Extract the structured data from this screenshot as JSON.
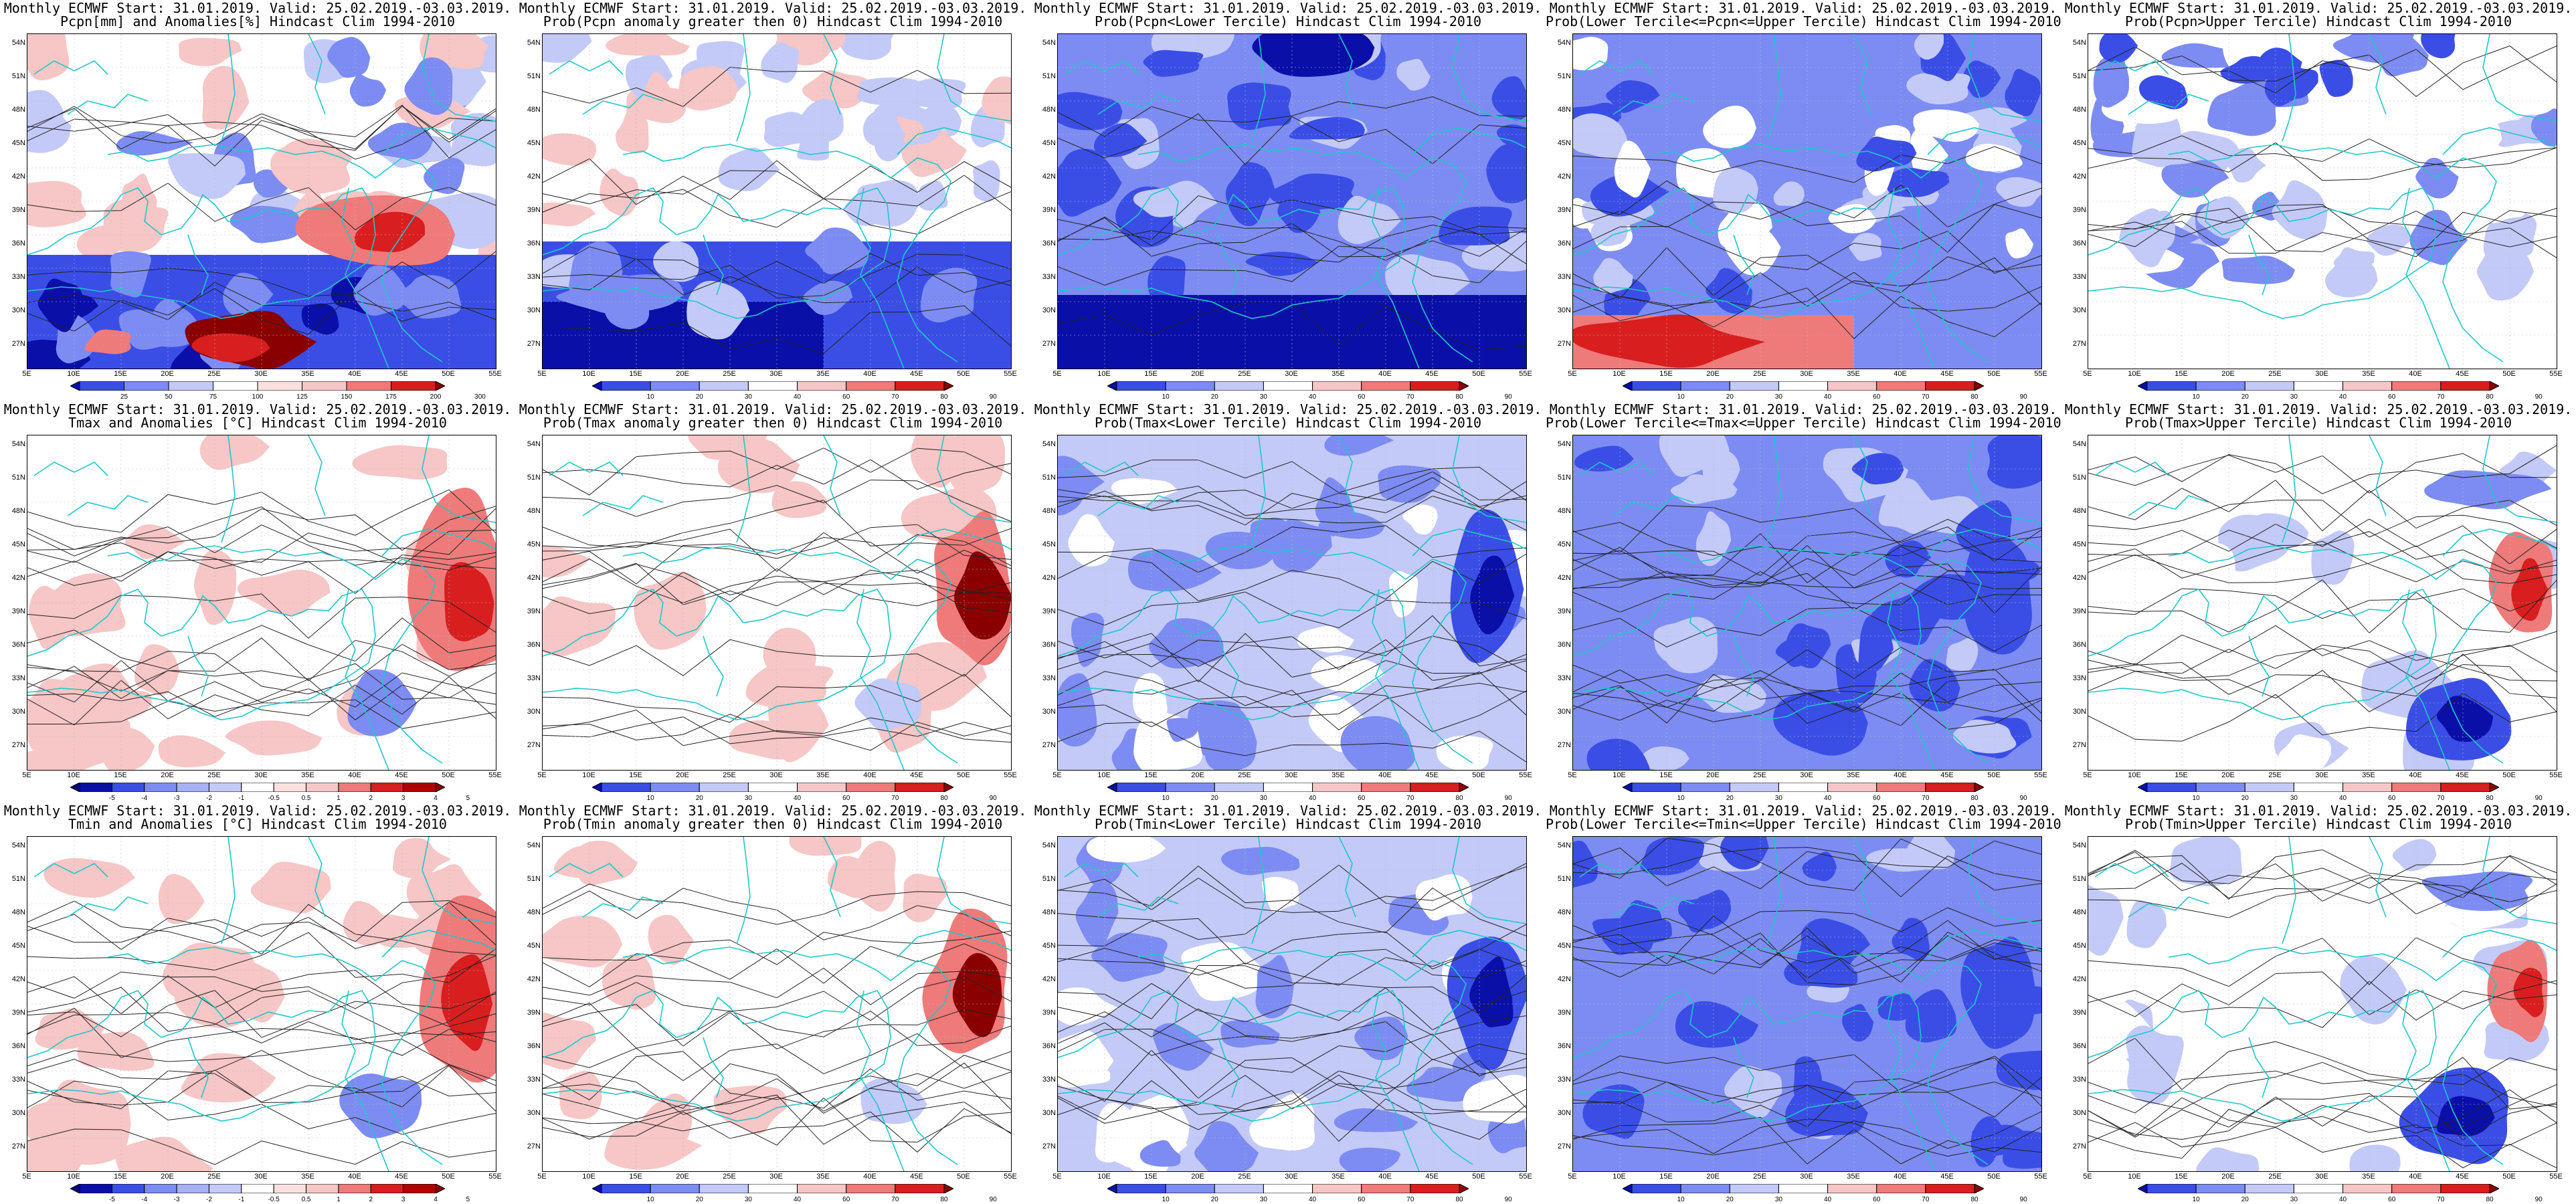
{
  "lat_labels": [
    "54N",
    "51N",
    "48N",
    "45N",
    "42N",
    "39N",
    "36N",
    "33N",
    "30N",
    "27N"
  ],
  "lon_labels": [
    "5E",
    "10E",
    "15E",
    "20E",
    "25E",
    "30E",
    "35E",
    "40E",
    "45E",
    "50E",
    "55E"
  ],
  "colors": {
    "deep_blue": "#0a0fa8",
    "blue": "#3a4ee6",
    "mid_blue": "#7d8cf2",
    "light_blue": "#c3caf8",
    "white": "#ffffff",
    "light_red": "#f7c6c6",
    "mid_red": "#ef7a7a",
    "red": "#d81e1e",
    "deep_red": "#8a0000",
    "coast": "#1ec8c8",
    "contour": "#222222"
  },
  "panels": [
    {
      "line1": "Monthly ECMWF Start: 31.01.2019. Valid: 25.02.2019.-03.03.2019.",
      "line2": "Pcpn[mm] and Anomalies[%] Hindcast Clim 1994-2010",
      "colorbar": "anom_pcpn",
      "style": "pcpn_anom"
    },
    {
      "line1": "Monthly ECMWF Start: 31.01.2019. Valid: 25.02.2019.-03.03.2019.",
      "line2": "Prob(Pcpn anomaly greater then 0) Hindcast Clim 1994-2010",
      "colorbar": "prob",
      "style": "pcpn_gt0"
    },
    {
      "line1": "Monthly ECMWF Start: 31.01.2019. Valid: 25.02.2019.-03.03.2019.",
      "line2": "Prob(Pcpn<Lower Tercile) Hindcast Clim 1994-2010",
      "colorbar": "prob",
      "style": "pcpn_lower"
    },
    {
      "line1": "Monthly ECMWF Start: 31.01.2019. Valid: 25.02.2019.-03.03.2019.",
      "line2": "Prob(Lower Tercile<=Pcpn<=Upper Tercile) Hindcast Clim 1994-2010",
      "colorbar": "prob",
      "style": "pcpn_mid"
    },
    {
      "line1": "Monthly ECMWF Start: 31.01.2019. Valid: 25.02.2019.-03.03.2019.",
      "line2": "Prob(Pcpn>Upper Tercile) Hindcast Clim 1994-2010",
      "colorbar": "prob",
      "style": "pcpn_upper"
    },
    {
      "line1": "Monthly ECMWF Start: 31.01.2019. Valid: 25.02.2019.-03.03.2019.",
      "line2": "Tmax and Anomalies [°C] Hindcast Clim 1994-2010",
      "colorbar": "anom_temp",
      "style": "t_anom"
    },
    {
      "line1": "Monthly ECMWF Start: 31.01.2019. Valid: 25.02.2019.-03.03.2019.",
      "line2": "Prob(Tmax anomaly greater then 0) Hindcast Clim 1994-2010",
      "colorbar": "prob",
      "style": "t_gt0"
    },
    {
      "line1": "Monthly ECMWF Start: 31.01.2019. Valid: 25.02.2019.-03.03.2019.",
      "line2": "Prob(Tmax<Lower Tercile) Hindcast Clim 1994-2010",
      "colorbar": "prob",
      "style": "t_lower"
    },
    {
      "line1": "Monthly ECMWF Start: 31.01.2019. Valid: 25.02.2019.-03.03.2019.",
      "line2": "Prob(Lower Tercile<=Tmax<=Upper Tercile) Hindcast Clim 1994-2010",
      "colorbar": "prob",
      "style": "t_mid"
    },
    {
      "line1": "Monthly ECMWF Start: 31.01.2019. Valid: 25.02.2019.-03.03.2019.",
      "line2": "Prob(Tmax>Upper Tercile) Hindcast Clim 1994-2010",
      "colorbar": "prob",
      "style": "t_upper"
    },
    {
      "line1": "Monthly ECMWF Start: 31.01.2019. Valid: 25.02.2019.-03.03.2019.",
      "line2": "Tmin and Anomalies [°C] Hindcast Clim 1994-2010",
      "colorbar": "anom_temp",
      "style": "t_anom"
    },
    {
      "line1": "Monthly ECMWF Start: 31.01.2019. Valid: 25.02.2019.-03.03.2019.",
      "line2": "Prob(Tmin anomaly greater then 0) Hindcast Clim 1994-2010",
      "colorbar": "prob",
      "style": "t_gt0"
    },
    {
      "line1": "Monthly ECMWF Start: 31.01.2019. Valid: 25.02.2019.-03.03.2019.",
      "line2": "Prob(Tmin<Lower Tercile) Hindcast Clim 1994-2010",
      "colorbar": "prob",
      "style": "t_lower"
    },
    {
      "line1": "Monthly ECMWF Start: 31.01.2019. Valid: 25.02.2019.-03.03.2019.",
      "line2": "Prob(Lower Tercile<=Tmin<=Upper Tercile) Hindcast Clim 1994-2010",
      "colorbar": "prob",
      "style": "t_mid"
    },
    {
      "line1": "Monthly ECMWF Start: 31.01.2019. Valid: 25.02.2019.-03.03.2019.",
      "line2": "Prob(Tmin>Upper Tercile) Hindcast Clim 1994-2010",
      "colorbar": "prob",
      "style": "t_upper"
    }
  ],
  "colorbars": {
    "prob": {
      "ticks": [
        "10",
        "20",
        "30",
        "40",
        "60",
        "70",
        "80",
        "90"
      ],
      "colors": [
        "#0a0fa8",
        "#3a4ee6",
        "#7d8cf2",
        "#c3caf8",
        "#ffffff",
        "#f7c6c6",
        "#ef7a7a",
        "#d81e1e",
        "#8a0000"
      ]
    },
    "anom_pcpn": {
      "ticks": [
        "25",
        "50",
        "75",
        "100",
        "125",
        "150",
        "175",
        "200",
        "300"
      ],
      "colors": [
        "#0a0fa8",
        "#3a4ee6",
        "#7d8cf2",
        "#c3caf8",
        "#ffffff",
        "#fbe0e0",
        "#f7c6c6",
        "#ef7a7a",
        "#d81e1e",
        "#8a0000"
      ]
    },
    "anom_temp": {
      "ticks": [
        "-5",
        "-4",
        "-3",
        "-2",
        "-1",
        "-0.5",
        "0.5",
        "1",
        "2",
        "3",
        "4",
        "5"
      ],
      "colors": [
        "#05087a",
        "#0a0fa8",
        "#3a4ee6",
        "#7d8cf2",
        "#a7b1f5",
        "#c3caf8",
        "#ffffff",
        "#fbe0e0",
        "#f7c6c6",
        "#ef7a7a",
        "#d81e1e",
        "#b00000",
        "#8a0000"
      ]
    }
  }
}
